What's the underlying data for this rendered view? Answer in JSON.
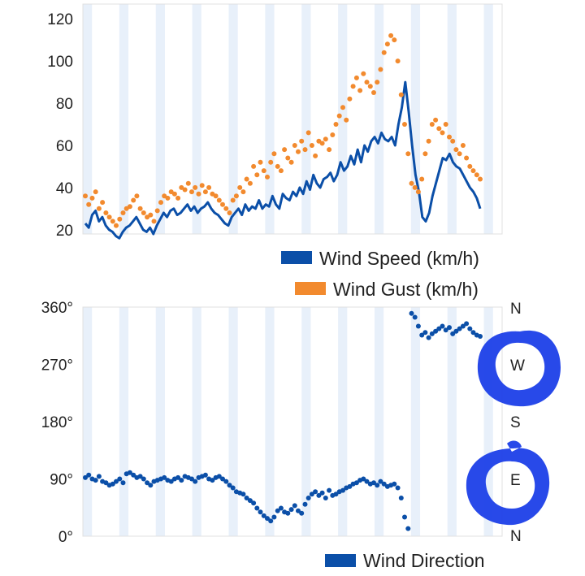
{
  "chart_data": [
    {
      "type": "line",
      "ylim": [
        18,
        127
      ],
      "yticks": [
        20,
        40,
        60,
        80,
        100,
        120
      ],
      "ytick_labels": [
        "20",
        "40",
        "60",
        "80",
        "100",
        "120"
      ],
      "grid": "alternating vertical bands",
      "legend_position": "bottom-right",
      "series": [
        {
          "name": "Wind Speed (km/h)",
          "kind": "line",
          "color": "#0b4fa8",
          "x": [
            0,
            1,
            2,
            3,
            4,
            5,
            6,
            7,
            8,
            9,
            10,
            11,
            12,
            13,
            14,
            15,
            16,
            17,
            18,
            19,
            20,
            21,
            22,
            23,
            24,
            25,
            26,
            27,
            28,
            29,
            30,
            31,
            32,
            33,
            34,
            35,
            36,
            37,
            38,
            39,
            40,
            41,
            42,
            43,
            44,
            45,
            46,
            47,
            48,
            49,
            50,
            51,
            52,
            53,
            54,
            55,
            56,
            57,
            58,
            59,
            60,
            61,
            62,
            63,
            64,
            65,
            66,
            67,
            68,
            69,
            70,
            71,
            72,
            73,
            74,
            75,
            76,
            77,
            78,
            79,
            80,
            81,
            82,
            83,
            84,
            85,
            86,
            87,
            88,
            89,
            90,
            91,
            92,
            93,
            94,
            95,
            96,
            97,
            98,
            99,
            100,
            101,
            102,
            103,
            104,
            105,
            106,
            107,
            108,
            109,
            110,
            111,
            112,
            113,
            114,
            115,
            116
          ],
          "y": [
            23,
            21,
            27,
            29,
            24,
            26,
            22,
            20,
            19,
            17,
            16,
            19,
            21,
            22,
            24,
            26,
            23,
            20,
            19,
            21,
            18,
            22,
            25,
            28,
            26,
            29,
            30,
            27,
            28,
            30,
            32,
            29,
            31,
            28,
            30,
            31,
            33,
            30,
            28,
            27,
            25,
            23,
            22,
            26,
            28,
            30,
            27,
            32,
            29,
            31,
            30,
            34,
            30,
            32,
            31,
            36,
            32,
            30,
            37,
            35,
            34,
            38,
            36,
            40,
            37,
            43,
            39,
            46,
            42,
            40,
            44,
            45,
            47,
            43,
            46,
            52,
            48,
            50,
            55,
            51,
            58,
            52,
            60,
            57,
            62,
            64,
            61,
            66,
            63,
            62,
            64,
            60,
            70,
            78,
            90,
            76,
            60,
            46,
            38,
            26,
            24,
            28,
            36,
            42,
            48,
            54,
            53,
            56,
            52,
            50,
            49,
            46,
            43,
            40,
            38,
            35,
            30
          ],
          "gap_note": "",
          "breaks": [
            [
              38,
              45
            ]
          ]
        },
        {
          "name": "Wind Gust (km/h)",
          "kind": "scatter",
          "color": "#f28a2e",
          "x": [
            0,
            1,
            2,
            3,
            4,
            5,
            6,
            7,
            8,
            9,
            10,
            11,
            12,
            13,
            14,
            15,
            16,
            17,
            18,
            19,
            20,
            21,
            22,
            23,
            24,
            25,
            26,
            27,
            28,
            29,
            30,
            31,
            32,
            33,
            34,
            35,
            36,
            37,
            38,
            39,
            40,
            41,
            42,
            43,
            44,
            45,
            46,
            47,
            48,
            49,
            50,
            51,
            52,
            53,
            54,
            55,
            56,
            57,
            58,
            59,
            60,
            61,
            62,
            63,
            64,
            65,
            66,
            67,
            68,
            69,
            70,
            71,
            72,
            73,
            74,
            75,
            76,
            77,
            78,
            79,
            80,
            81,
            82,
            83,
            84,
            85,
            86,
            87,
            88,
            89,
            90,
            91,
            92,
            93,
            94,
            95,
            96,
            97,
            98,
            99,
            100,
            101,
            102,
            103,
            104,
            105,
            106,
            107,
            108,
            109,
            110,
            111,
            112,
            113,
            114,
            115
          ],
          "y": [
            36,
            32,
            35,
            38,
            30,
            33,
            28,
            26,
            24,
            22,
            25,
            28,
            30,
            31,
            34,
            36,
            30,
            28,
            26,
            27,
            24,
            29,
            33,
            36,
            35,
            38,
            37,
            35,
            40,
            39,
            42,
            38,
            40,
            37,
            41,
            38,
            40,
            37,
            36,
            34,
            32,
            30,
            28,
            34,
            36,
            40,
            38,
            44,
            42,
            50,
            46,
            52,
            48,
            45,
            52,
            56,
            50,
            48,
            58,
            54,
            52,
            60,
            57,
            62,
            58,
            66,
            60,
            55,
            62,
            61,
            63,
            58,
            65,
            70,
            74,
            78,
            72,
            82,
            88,
            92,
            86,
            94,
            90,
            88,
            85,
            90,
            96,
            104,
            108,
            112,
            110,
            100,
            84,
            70,
            56,
            42,
            40,
            38,
            44,
            56,
            62,
            70,
            72,
            68,
            66,
            70,
            64,
            62,
            58,
            56,
            60,
            54,
            50,
            48,
            46,
            44
          ]
        }
      ]
    },
    {
      "type": "scatter",
      "ylim": [
        0,
        360
      ],
      "yticks": [
        0,
        90,
        180,
        270,
        360
      ],
      "ytick_labels": [
        "0°",
        "90°",
        "180°",
        "270°",
        "360°"
      ],
      "compass_labels": [
        "N",
        "E",
        "S",
        "W",
        "N"
      ],
      "grid": "alternating vertical bands",
      "legend_position": "bottom-right",
      "series": [
        {
          "name": "Wind Direction",
          "kind": "scatter",
          "color": "#0b4fa8",
          "x": [
            0,
            1,
            2,
            3,
            4,
            5,
            6,
            7,
            8,
            9,
            10,
            11,
            12,
            13,
            14,
            15,
            16,
            17,
            18,
            19,
            20,
            21,
            22,
            23,
            24,
            25,
            26,
            27,
            28,
            29,
            30,
            31,
            32,
            33,
            34,
            35,
            36,
            37,
            38,
            39,
            40,
            41,
            42,
            43,
            44,
            45,
            46,
            47,
            48,
            49,
            50,
            51,
            52,
            53,
            54,
            55,
            56,
            57,
            58,
            59,
            60,
            61,
            62,
            63,
            64,
            65,
            66,
            67,
            68,
            69,
            70,
            71,
            72,
            73,
            74,
            75,
            76,
            77,
            78,
            79,
            80,
            81,
            82,
            83,
            84,
            85,
            86,
            87,
            88,
            89,
            90,
            91,
            92,
            93,
            94,
            95,
            96,
            97,
            98,
            99,
            100,
            101,
            102,
            103,
            104,
            105,
            106,
            107,
            108,
            109,
            110,
            111,
            112,
            113,
            114,
            115
          ],
          "y": [
            92,
            96,
            90,
            88,
            94,
            86,
            84,
            80,
            82,
            86,
            90,
            84,
            98,
            100,
            96,
            92,
            94,
            90,
            84,
            80,
            86,
            88,
            90,
            92,
            88,
            86,
            90,
            92,
            88,
            94,
            92,
            90,
            86,
            92,
            94,
            96,
            90,
            88,
            92,
            94,
            90,
            86,
            80,
            76,
            70,
            68,
            66,
            60,
            56,
            52,
            44,
            38,
            32,
            28,
            24,
            30,
            40,
            44,
            38,
            36,
            42,
            48,
            40,
            36,
            50,
            60,
            66,
            70,
            64,
            68,
            60,
            72,
            64,
            66,
            70,
            72,
            76,
            78,
            82,
            84,
            88,
            90,
            86,
            82,
            84,
            80,
            86,
            82,
            78,
            80,
            82,
            76,
            60,
            30,
            12,
            350,
            344,
            330,
            316,
            320,
            312,
            318,
            322,
            326,
            330,
            324,
            328,
            318,
            322,
            326,
            330,
            334,
            326,
            320,
            316,
            314
          ]
        }
      ]
    }
  ],
  "legend": {
    "wind_speed": "Wind Speed (km/h)",
    "wind_gust": "Wind Gust (km/h)",
    "wind_direction": "Wind Direction"
  },
  "colors": {
    "speed": "#0b4fa8",
    "gust": "#f28a2e",
    "direction": "#0b4fa8",
    "band": "#e8f0fa",
    "scribble": "#1c3fe8"
  }
}
